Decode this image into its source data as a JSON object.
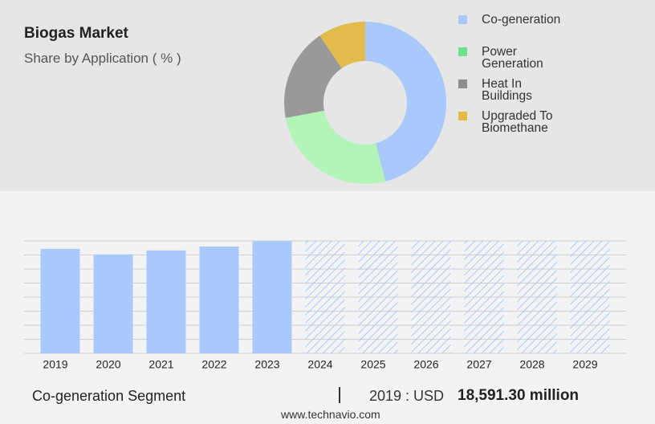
{
  "header": {
    "title": "Biogas Market",
    "subtitle": "Share by Application ( % )"
  },
  "chart_data": [
    {
      "type": "donut",
      "categories": [
        "Co-generation",
        "Power Generation",
        "Heat In Buildings",
        "Upgraded To Biomethane"
      ],
      "values": [
        46,
        26,
        18.5,
        9.5
      ],
      "colors": [
        "#a9c9fd",
        "#b3f5b8",
        "#999999",
        "#e3bb4d"
      ],
      "legend_colors": [
        "#a9c9fd",
        "#6fe28c",
        "#8e8e8e",
        "#e6bb45"
      ]
    },
    {
      "type": "bar",
      "categories": [
        "2019",
        "2020",
        "2021",
        "2022",
        "2023",
        "2024",
        "2025",
        "2026",
        "2027",
        "2028",
        "2029"
      ],
      "values": [
        18591.3,
        17600,
        18300,
        19000,
        19950,
        null,
        null,
        null,
        null,
        null,
        null
      ],
      "color": "#a9c9fd",
      "forecast_color": "#a9c9fd",
      "ylim": [
        0,
        20000
      ],
      "yticks": [
        0,
        2500,
        5000,
        7500,
        10000,
        12500,
        15000,
        17500,
        20000
      ],
      "grid": true,
      "tick_labels": false
    }
  ],
  "footer": {
    "segment": "Co-generation Segment",
    "year_label": "2019 : USD",
    "value": "18,591.30 million",
    "source": "www.technavio.com"
  }
}
